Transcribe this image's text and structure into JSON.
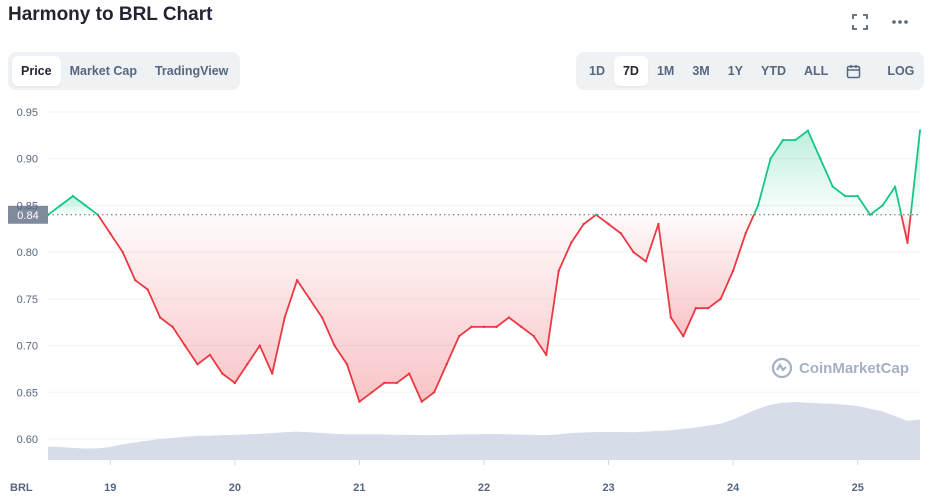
{
  "title": "Harmony to BRL Chart",
  "tabs": [
    {
      "label": "Price",
      "active": true
    },
    {
      "label": "Market Cap",
      "active": false
    },
    {
      "label": "TradingView",
      "active": false
    }
  ],
  "ranges": [
    {
      "label": "1D",
      "active": false
    },
    {
      "label": "7D",
      "active": true
    },
    {
      "label": "1M",
      "active": false
    },
    {
      "label": "3M",
      "active": false
    },
    {
      "label": "1Y",
      "active": false
    },
    {
      "label": "YTD",
      "active": false
    },
    {
      "label": "ALL",
      "active": false
    }
  ],
  "log_label": "LOG",
  "icons": {
    "fullscreen": "fullscreen-icon",
    "more": "more-icon",
    "calendar": "calendar-icon"
  },
  "watermark": "CoinMarketCap",
  "colors": {
    "up": "#16c784",
    "down": "#ea3943",
    "volume": "#cfd6e4",
    "baseline_label_bg": "#808a9d"
  },
  "chart_data": {
    "type": "line",
    "currency_label": "BRL",
    "baseline": 0.84,
    "baseline_label": "0.84",
    "y_ticks": [
      "0.95",
      "0.90",
      "0.85",
      "0.80",
      "0.75",
      "0.70",
      "0.65",
      "0.60"
    ],
    "ylim": [
      0.6,
      0.95
    ],
    "x_ticks": [
      "19",
      "20",
      "21",
      "22",
      "23",
      "24",
      "25"
    ],
    "xlim": [
      18.5,
      25.5
    ],
    "x": [
      18.5,
      18.6,
      18.7,
      18.8,
      18.9,
      19.0,
      19.1,
      19.2,
      19.3,
      19.4,
      19.5,
      19.6,
      19.7,
      19.8,
      19.9,
      20.0,
      20.1,
      20.2,
      20.3,
      20.4,
      20.5,
      20.6,
      20.7,
      20.8,
      20.9,
      21.0,
      21.1,
      21.2,
      21.3,
      21.4,
      21.5,
      21.6,
      21.7,
      21.8,
      21.9,
      22.0,
      22.1,
      22.2,
      22.3,
      22.4,
      22.5,
      22.6,
      22.7,
      22.8,
      22.9,
      23.0,
      23.1,
      23.2,
      23.3,
      23.4,
      23.5,
      23.6,
      23.7,
      23.8,
      23.9,
      24.0,
      24.1,
      24.2,
      24.3,
      24.4,
      24.5,
      24.6,
      24.7,
      24.8,
      24.9,
      25.0,
      25.1,
      25.2,
      25.3,
      25.4,
      25.5
    ],
    "series": [
      {
        "values": [
          0.84,
          0.85,
          0.86,
          0.85,
          0.84,
          0.82,
          0.8,
          0.77,
          0.76,
          0.73,
          0.72,
          0.7,
          0.68,
          0.69,
          0.67,
          0.66,
          0.68,
          0.7,
          0.67,
          0.73,
          0.77,
          0.75,
          0.73,
          0.7,
          0.68,
          0.64,
          0.65,
          0.66,
          0.66,
          0.67,
          0.64,
          0.65,
          0.68,
          0.71,
          0.72,
          0.72,
          0.72,
          0.73,
          0.72,
          0.71,
          0.69,
          0.78,
          0.81,
          0.83,
          0.84,
          0.83,
          0.82,
          0.8,
          0.79,
          0.83,
          0.73,
          0.71,
          0.74,
          0.74,
          0.75,
          0.78,
          0.82,
          0.85,
          0.9,
          0.92,
          0.92,
          0.93,
          0.9,
          0.87,
          0.86,
          0.86,
          0.84,
          0.85,
          0.87,
          0.81,
          0.93
        ]
      }
    ],
    "volume": [
      0.5,
      0.48,
      0.45,
      0.42,
      0.43,
      0.48,
      0.58,
      0.65,
      0.72,
      0.78,
      0.82,
      0.86,
      0.9,
      0.9,
      0.92,
      0.93,
      0.95,
      0.97,
      1.0,
      1.03,
      1.05,
      1.03,
      1.0,
      0.97,
      0.95,
      0.95,
      0.95,
      0.95,
      0.93,
      0.93,
      0.92,
      0.92,
      0.93,
      0.95,
      0.95,
      0.96,
      0.96,
      0.95,
      0.94,
      0.93,
      0.92,
      0.95,
      1.0,
      1.02,
      1.04,
      1.04,
      1.04,
      1.03,
      1.05,
      1.08,
      1.1,
      1.15,
      1.2,
      1.28,
      1.35,
      1.5,
      1.7,
      1.9,
      2.05,
      2.12,
      2.15,
      2.12,
      2.1,
      2.08,
      2.05,
      2.0,
      1.9,
      1.8,
      1.62,
      1.45,
      1.5
    ]
  }
}
